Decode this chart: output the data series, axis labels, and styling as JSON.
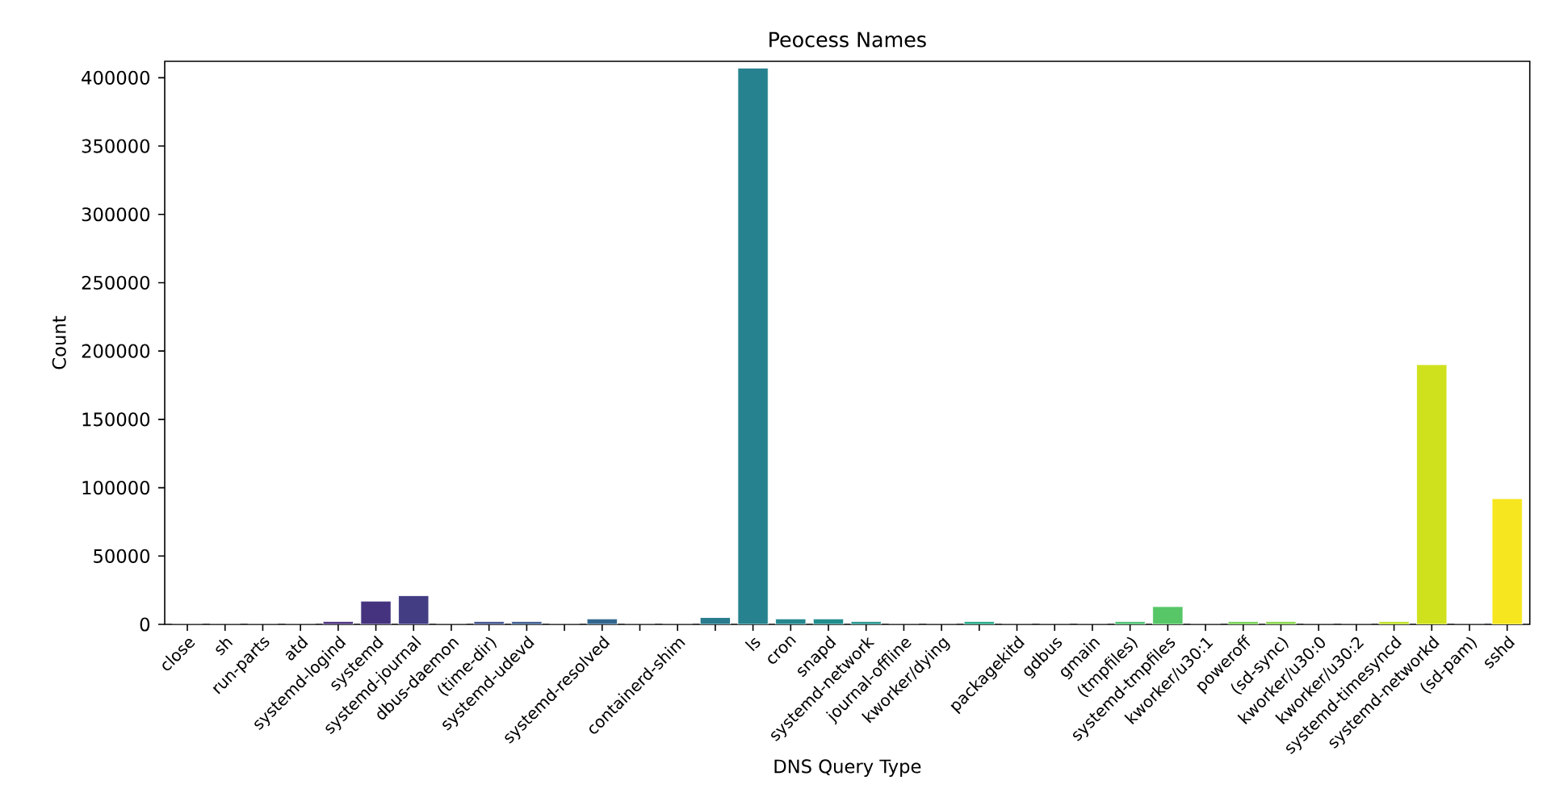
{
  "chart_data": {
    "type": "bar",
    "title": "Peocess Names",
    "xlabel": "DNS Query Type",
    "ylabel": "Count",
    "categories": [
      "close",
      "sh",
      "run-parts",
      "atd",
      "systemd-logind",
      "systemd",
      "systemd-journal",
      "dbus-daemon",
      "(time-dir)",
      "systemd-udevd",
      null,
      "systemd-resolved",
      null,
      "containerd-shim",
      null,
      "ls",
      "cron",
      "snapd",
      "systemd-network",
      "journal-offline",
      "kworker/dying",
      null,
      "packagekitd",
      "gdbus",
      "gmain",
      "(tmpfiles)",
      "systemd-tmpfiles",
      "kworker/u30:1",
      "poweroff",
      "(sd-sync)",
      "kworker/u30:0",
      "kworker/u30:2",
      "systemd-timesyncd",
      "systemd-networkd",
      "(sd-pam)",
      "sshd"
    ],
    "values": [
      0,
      0,
      0,
      0,
      2000,
      17000,
      21000,
      0,
      2000,
      2000,
      0,
      4000,
      0,
      0,
      5000,
      407000,
      4000,
      4000,
      2000,
      0,
      0,
      2000,
      0,
      0,
      0,
      2000,
      13000,
      0,
      2000,
      2000,
      0,
      0,
      2000,
      190000,
      0,
      92000
    ],
    "colors": [
      "#450559",
      "#471365",
      "#481c6e",
      "#482475",
      "#472c7a",
      "#46337f",
      "#433d84",
      "#404588",
      "#3c4f8a",
      "#38588c",
      "#355f8d",
      "#31668e",
      "#2e6e8e",
      "#2b758e",
      "#297b8e",
      "#26828e",
      "#24878e",
      "#228d8d",
      "#20938c",
      "#1f998a",
      "#1fa088",
      "#22a785",
      "#27ad81",
      "#2eb37c",
      "#3bbb75",
      "#48c16e",
      "#56c667",
      "#65cb5e",
      "#75d054",
      "#86d549",
      "#98d83e",
      "#aadc32",
      "#bddf26",
      "#cfe11c",
      "#e2e418",
      "#f6e620"
    ],
    "ylim": [
      0,
      412000
    ],
    "yticks": [
      0,
      50000,
      100000,
      150000,
      200000,
      250000,
      300000,
      350000,
      400000
    ]
  }
}
